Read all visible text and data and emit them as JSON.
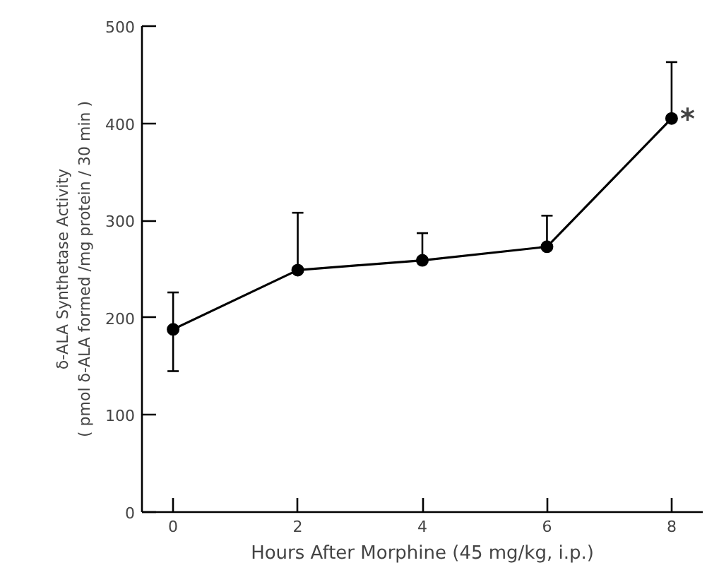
{
  "chart_data": {
    "type": "line",
    "xlabel": "Hours After Morphine (45 mg/kg, i.p.)",
    "ylabel": "δ-ALA Synthetase Activity\n( pmol δ-ALA formed /mg protein / 30 min )",
    "x": [
      0,
      2,
      4,
      6,
      8
    ],
    "series": [
      {
        "color": "#000000",
        "values": [
          188,
          249,
          259,
          273,
          405
        ],
        "errors": [
          [
            145,
            226
          ],
          [
            249,
            308
          ],
          [
            259,
            287
          ],
          [
            273,
            305
          ],
          [
            405,
            463
          ]
        ]
      }
    ],
    "xlim": [
      -0.5,
      8.5
    ],
    "ylim": [
      0,
      500
    ],
    "xticks": [
      0,
      2,
      4,
      6,
      8
    ],
    "yticks": [
      0,
      100,
      200,
      300,
      400,
      500
    ],
    "annotations": [
      {
        "text": "*",
        "x": 8,
        "y": 405
      }
    ],
    "marker": "circle",
    "line_style": "solid",
    "grid": false
  }
}
